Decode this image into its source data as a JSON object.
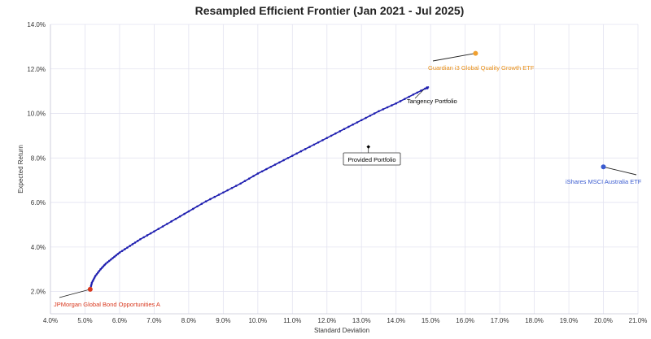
{
  "chart_data": {
    "type": "scatter",
    "title": "Resampled Efficient Frontier (Jan 2021 - Jul 2025)",
    "xlabel": "Standard Deviation",
    "ylabel": "Expected Return",
    "xlim": [
      4.0,
      21.0
    ],
    "ylim": [
      1.0,
      14.0
    ],
    "x_ticks": [
      4,
      5,
      6,
      7,
      8,
      9,
      10,
      11,
      12,
      13,
      14,
      15,
      16,
      17,
      18,
      19,
      20,
      21
    ],
    "y_ticks": [
      2,
      4,
      6,
      8,
      10,
      12,
      14
    ],
    "x_tick_labels": [
      "4.0%",
      "5.0%",
      "6.0%",
      "7.0%",
      "8.0%",
      "9.0%",
      "10.0%",
      "11.0%",
      "12.0%",
      "13.0%",
      "14.0%",
      "15.0%",
      "16.0%",
      "17.0%",
      "18.0%",
      "19.0%",
      "20.0%",
      "21.0%"
    ],
    "y_tick_labels": [
      "2.0%",
      "4.0%",
      "6.0%",
      "8.0%",
      "10.0%",
      "12.0%",
      "14.0%"
    ],
    "grid": true,
    "frontier": {
      "color": "#1f1fb0",
      "x": [
        5.15,
        5.2,
        5.3,
        5.45,
        5.6,
        5.8,
        6.0,
        6.3,
        6.6,
        7.0,
        7.5,
        8.0,
        8.5,
        9.0,
        9.5,
        10.0,
        10.5,
        11.0,
        11.5,
        12.0,
        12.5,
        13.0,
        13.5,
        14.0,
        14.5,
        14.95
      ],
      "y": [
        2.1,
        2.4,
        2.7,
        3.0,
        3.25,
        3.5,
        3.75,
        4.05,
        4.35,
        4.7,
        5.15,
        5.6,
        6.05,
        6.45,
        6.85,
        7.3,
        7.7,
        8.1,
        8.5,
        8.9,
        9.3,
        9.7,
        10.1,
        10.45,
        10.85,
        11.2
      ]
    },
    "points": [
      {
        "label": "JPMorgan Global Bond Opportunities A",
        "x": 5.15,
        "y": 2.1,
        "color": "#d9381e",
        "label_color": "#d9381e"
      },
      {
        "label": "Guardian i3 Global Quality Growth ETF",
        "x": 16.3,
        "y": 12.7,
        "color": "#f0a030",
        "label_color": "#e8901a"
      },
      {
        "label": "iShares MSCI Australia ETF",
        "x": 20.0,
        "y": 7.6,
        "color": "#3a5bd0",
        "label_color": "#3a5bd0"
      },
      {
        "label": "Provided Portfolio",
        "x": 13.2,
        "y": 8.5,
        "color": "#000000",
        "label_color": "#000000"
      },
      {
        "label": "Tangency Portfolio",
        "x": 14.9,
        "y": 11.15,
        "color": "#1f1fb0",
        "label_color": "#000000"
      }
    ]
  }
}
